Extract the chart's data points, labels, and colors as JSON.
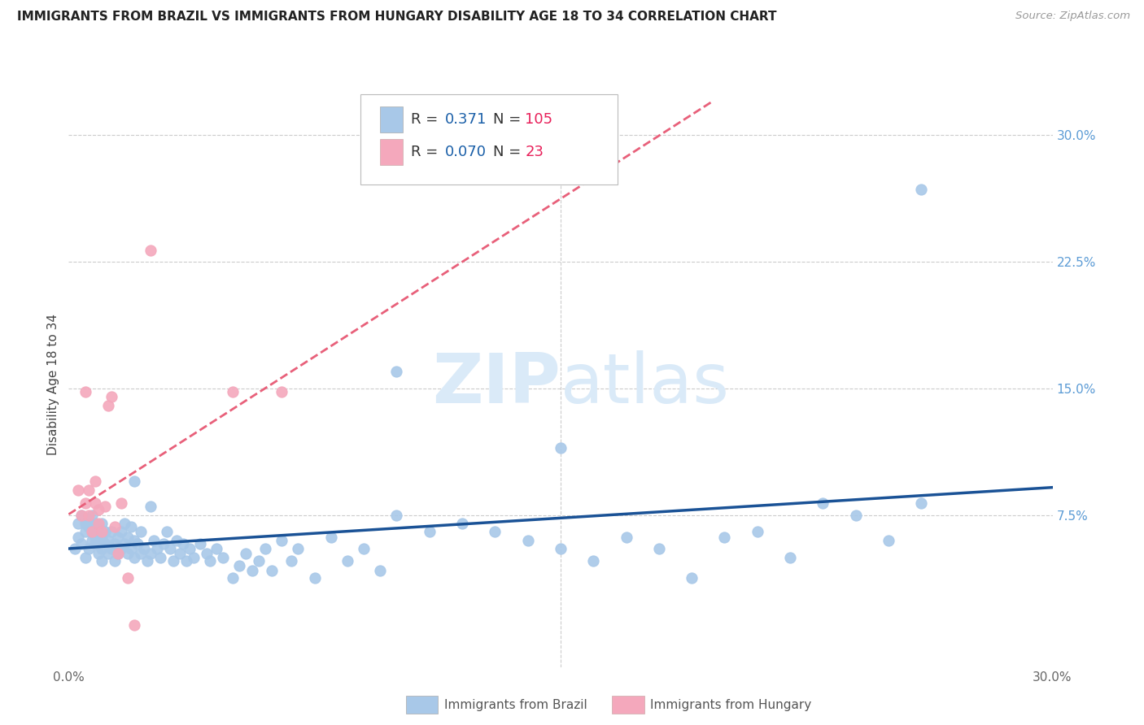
{
  "title": "IMMIGRANTS FROM BRAZIL VS IMMIGRANTS FROM HUNGARY DISABILITY AGE 18 TO 34 CORRELATION CHART",
  "source": "Source: ZipAtlas.com",
  "ylabel": "Disability Age 18 to 34",
  "xmin": 0.0,
  "xmax": 0.3,
  "ymin": -0.015,
  "ymax": 0.32,
  "brazil_color": "#a8c8e8",
  "hungary_color": "#f4a8bc",
  "brazil_R": 0.371,
  "brazil_N": 105,
  "hungary_R": 0.07,
  "hungary_N": 23,
  "trend_brazil_color": "#1a5296",
  "trend_hungary_color": "#e8607a",
  "watermark_color": "#daeaf8",
  "brazil_points_x": [
    0.002,
    0.003,
    0.003,
    0.004,
    0.004,
    0.005,
    0.005,
    0.005,
    0.006,
    0.006,
    0.006,
    0.007,
    0.007,
    0.007,
    0.008,
    0.008,
    0.008,
    0.009,
    0.009,
    0.009,
    0.01,
    0.01,
    0.01,
    0.01,
    0.011,
    0.011,
    0.012,
    0.012,
    0.013,
    0.013,
    0.014,
    0.014,
    0.015,
    0.015,
    0.016,
    0.016,
    0.017,
    0.017,
    0.018,
    0.018,
    0.019,
    0.019,
    0.02,
    0.02,
    0.021,
    0.022,
    0.022,
    0.023,
    0.024,
    0.025,
    0.026,
    0.027,
    0.028,
    0.029,
    0.03,
    0.031,
    0.032,
    0.033,
    0.034,
    0.035,
    0.036,
    0.037,
    0.038,
    0.04,
    0.042,
    0.043,
    0.045,
    0.047,
    0.05,
    0.052,
    0.054,
    0.056,
    0.058,
    0.06,
    0.062,
    0.065,
    0.068,
    0.07,
    0.075,
    0.08,
    0.085,
    0.09,
    0.095,
    0.1,
    0.11,
    0.12,
    0.13,
    0.14,
    0.15,
    0.16,
    0.17,
    0.18,
    0.19,
    0.2,
    0.21,
    0.22,
    0.23,
    0.24,
    0.25,
    0.26,
    0.02,
    0.025,
    0.1,
    0.15,
    0.26
  ],
  "brazil_points_y": [
    0.055,
    0.062,
    0.07,
    0.058,
    0.075,
    0.05,
    0.065,
    0.07,
    0.055,
    0.068,
    0.072,
    0.06,
    0.065,
    0.075,
    0.058,
    0.062,
    0.07,
    0.052,
    0.06,
    0.068,
    0.048,
    0.055,
    0.062,
    0.07,
    0.058,
    0.065,
    0.052,
    0.06,
    0.055,
    0.065,
    0.048,
    0.058,
    0.052,
    0.062,
    0.055,
    0.065,
    0.058,
    0.07,
    0.052,
    0.062,
    0.055,
    0.068,
    0.05,
    0.06,
    0.058,
    0.052,
    0.065,
    0.055,
    0.048,
    0.052,
    0.06,
    0.055,
    0.05,
    0.058,
    0.065,
    0.055,
    0.048,
    0.06,
    0.052,
    0.058,
    0.048,
    0.055,
    0.05,
    0.058,
    0.052,
    0.048,
    0.055,
    0.05,
    0.038,
    0.045,
    0.052,
    0.042,
    0.048,
    0.055,
    0.042,
    0.06,
    0.048,
    0.055,
    0.038,
    0.062,
    0.048,
    0.055,
    0.042,
    0.075,
    0.065,
    0.07,
    0.065,
    0.06,
    0.055,
    0.048,
    0.062,
    0.055,
    0.038,
    0.062,
    0.065,
    0.05,
    0.082,
    0.075,
    0.06,
    0.082,
    0.095,
    0.08,
    0.16,
    0.115,
    0.268
  ],
  "hungary_points_x": [
    0.003,
    0.004,
    0.005,
    0.005,
    0.006,
    0.006,
    0.007,
    0.008,
    0.008,
    0.009,
    0.009,
    0.01,
    0.011,
    0.012,
    0.013,
    0.014,
    0.015,
    0.016,
    0.018,
    0.02,
    0.025,
    0.05,
    0.065
  ],
  "hungary_points_y": [
    0.09,
    0.075,
    0.148,
    0.082,
    0.075,
    0.09,
    0.065,
    0.082,
    0.095,
    0.07,
    0.078,
    0.065,
    0.08,
    0.14,
    0.145,
    0.068,
    0.052,
    0.082,
    0.038,
    0.01,
    0.232,
    0.148,
    0.148
  ]
}
